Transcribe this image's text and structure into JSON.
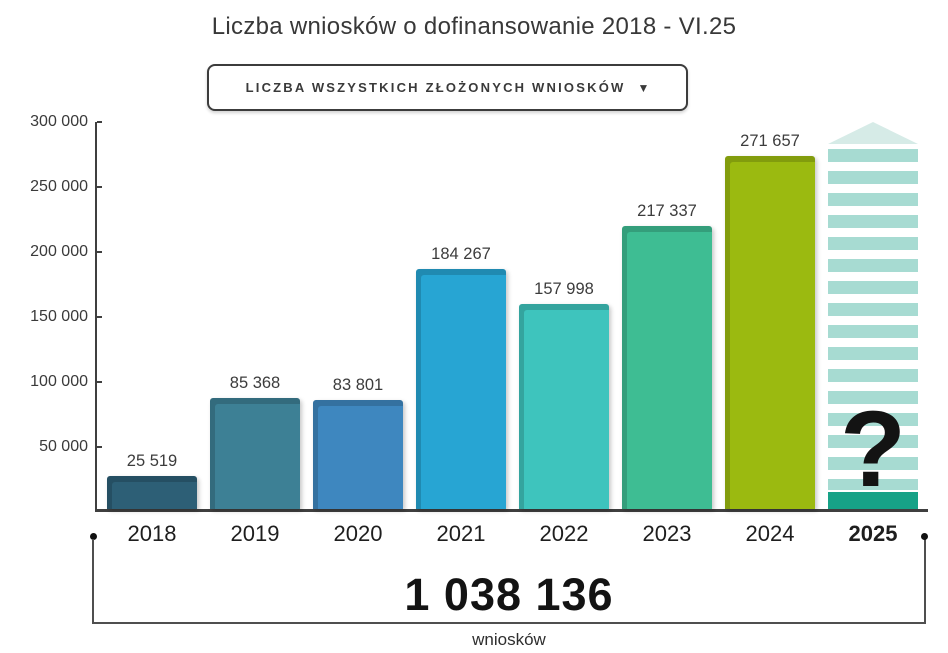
{
  "dropdown": {
    "label": "LICZBA WSZYSTKICH ZŁOŻONYCH WNIOSKÓW",
    "caret": "▼"
  },
  "chart_data": {
    "type": "bar",
    "title": "Liczba wniosków o dofinansowanie 2018 - VI.25",
    "categories": [
      "2018",
      "2019",
      "2020",
      "2021",
      "2022",
      "2023",
      "2024",
      "2025"
    ],
    "values": [
      25519,
      85368,
      83801,
      184267,
      157998,
      217337,
      271657,
      null
    ],
    "value_labels": [
      "25 519",
      "85 368",
      "83 801",
      "184 267",
      "157 998",
      "217 337",
      "271 657",
      ""
    ],
    "bar_colors": [
      "#2d5f76",
      "#3d8095",
      "#3e87bf",
      "#27a5d3",
      "#3ec4bd",
      "#3ebd93",
      "#9bba10",
      "#a7dbd2"
    ],
    "xlabel": "",
    "ylabel": "",
    "ylim": [
      0,
      300000
    ],
    "y_tick_step": 50000,
    "y_tick_labels": [
      "300 000",
      "250 000",
      "200 000",
      "150 000",
      "100 000",
      "50 000"
    ],
    "grid": false,
    "legend": false,
    "projected": {
      "year": "2025",
      "placeholder": "?",
      "stripe_color": "#a7dbd2",
      "cap_color": "#d6ebe7",
      "base_color": "#17a287"
    }
  },
  "summary": {
    "total": "1 038 136",
    "unit": "wniosków"
  }
}
